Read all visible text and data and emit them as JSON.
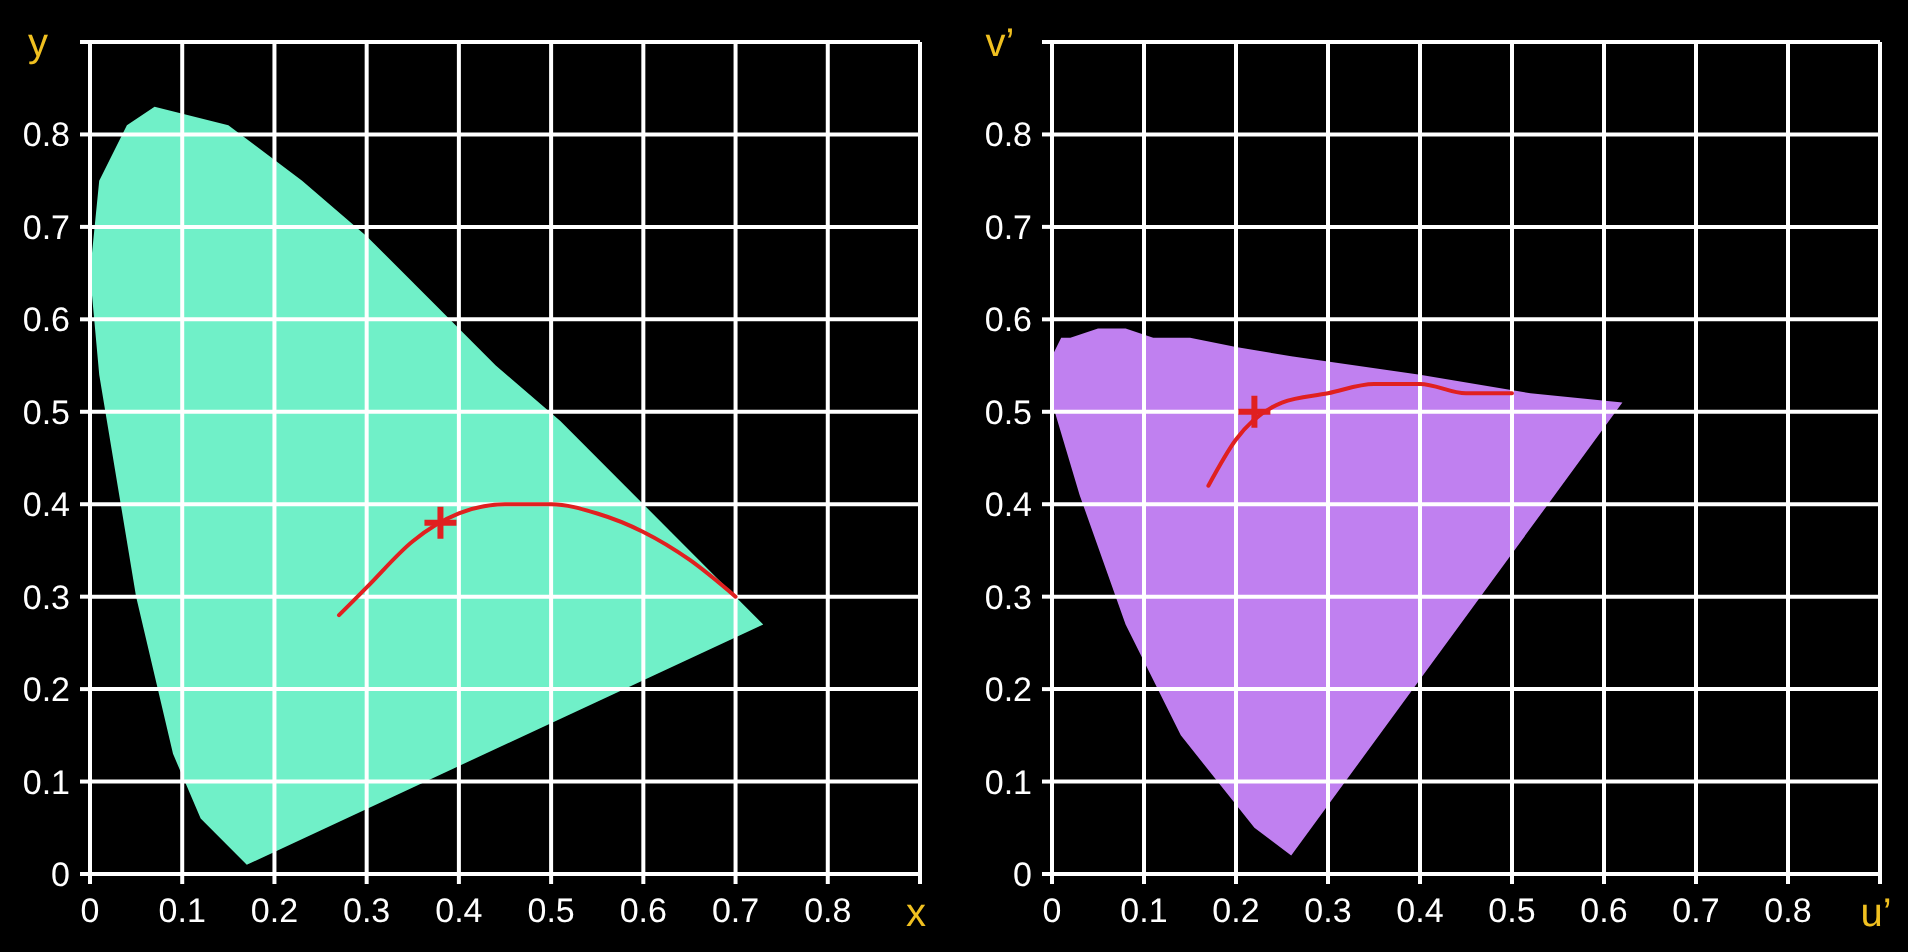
{
  "chart_data": [
    {
      "type": "line",
      "xlabel": "x",
      "ylabel": "y",
      "xlim": [
        0,
        0.9
      ],
      "ylim": [
        0,
        0.9
      ],
      "xticks": [
        0,
        0.1,
        0.2,
        0.3,
        0.4,
        0.5,
        0.6,
        0.7,
        0.8,
        {
          "value": 0.9,
          "label": null
        }
      ],
      "yticks": [
        0,
        0.1,
        0.2,
        0.3,
        0.4,
        0.5,
        0.6,
        0.7,
        0.8,
        {
          "value": 0.9,
          "label": null
        }
      ],
      "grid": true,
      "series": [
        {
          "type": "area",
          "color": "#70f0c8",
          "x": [
            0.17,
            0.16,
            0.12,
            0.09,
            0.05,
            0.01,
            0.0,
            0.01,
            0.04,
            0.07,
            0.15,
            0.23,
            0.3,
            0.37,
            0.44,
            0.51,
            0.58,
            0.63,
            0.69,
            0.73
          ],
          "values": [
            0.01,
            0.02,
            0.06,
            0.13,
            0.3,
            0.54,
            0.65,
            0.75,
            0.81,
            0.83,
            0.81,
            0.75,
            0.69,
            0.62,
            0.55,
            0.49,
            0.42,
            0.37,
            0.31,
            0.27
          ]
        },
        {
          "color": "#e02020",
          "line_style": "solid",
          "marker": "none",
          "x": [
            0.27,
            0.3,
            0.35,
            0.4,
            0.45,
            0.5,
            0.55,
            0.6,
            0.65,
            0.7
          ],
          "values": [
            0.28,
            0.31,
            0.36,
            0.39,
            0.4,
            0.4,
            0.39,
            0.37,
            0.34,
            0.3
          ]
        },
        {
          "type": "scatter",
          "color": "#e02020",
          "marker": "cross",
          "x": [
            0.38
          ],
          "values": [
            0.38
          ]
        }
      ]
    },
    {
      "type": "line",
      "xlabel": "u’",
      "ylabel": "v’",
      "xlim": [
        0,
        0.9
      ],
      "ylim": [
        0,
        0.9
      ],
      "xticks": [
        0,
        0.1,
        0.2,
        0.3,
        0.4,
        0.5,
        0.6,
        0.7,
        0.8,
        {
          "value": 0.9,
          "label": null
        }
      ],
      "yticks": [
        0,
        0.1,
        0.2,
        0.3,
        0.4,
        0.5,
        0.6,
        0.7,
        0.8,
        {
          "value": 0.9,
          "label": null
        }
      ],
      "grid": true,
      "series": [
        {
          "type": "area",
          "color": "#c080f0",
          "x": [
            0.26,
            0.22,
            0.14,
            0.08,
            0.03,
            0.0,
            0.0,
            0.0,
            0.01,
            0.02,
            0.05,
            0.08,
            0.11,
            0.15,
            0.2,
            0.26,
            0.33,
            0.4,
            0.52,
            0.62
          ],
          "values": [
            0.02,
            0.05,
            0.15,
            0.27,
            0.41,
            0.51,
            0.54,
            0.56,
            0.58,
            0.58,
            0.59,
            0.59,
            0.58,
            0.58,
            0.57,
            0.56,
            0.55,
            0.54,
            0.52,
            0.51
          ]
        },
        {
          "color": "#e02020",
          "line_style": "solid",
          "marker": "none",
          "x": [
            0.17,
            0.2,
            0.25,
            0.3,
            0.35,
            0.4,
            0.45,
            0.5
          ],
          "values": [
            0.42,
            0.47,
            0.51,
            0.52,
            0.53,
            0.53,
            0.52,
            0.52
          ]
        },
        {
          "type": "scatter",
          "color": "#e02020",
          "marker": "cross",
          "x": [
            0.22
          ],
          "values": [
            0.5
          ]
        }
      ]
    }
  ]
}
